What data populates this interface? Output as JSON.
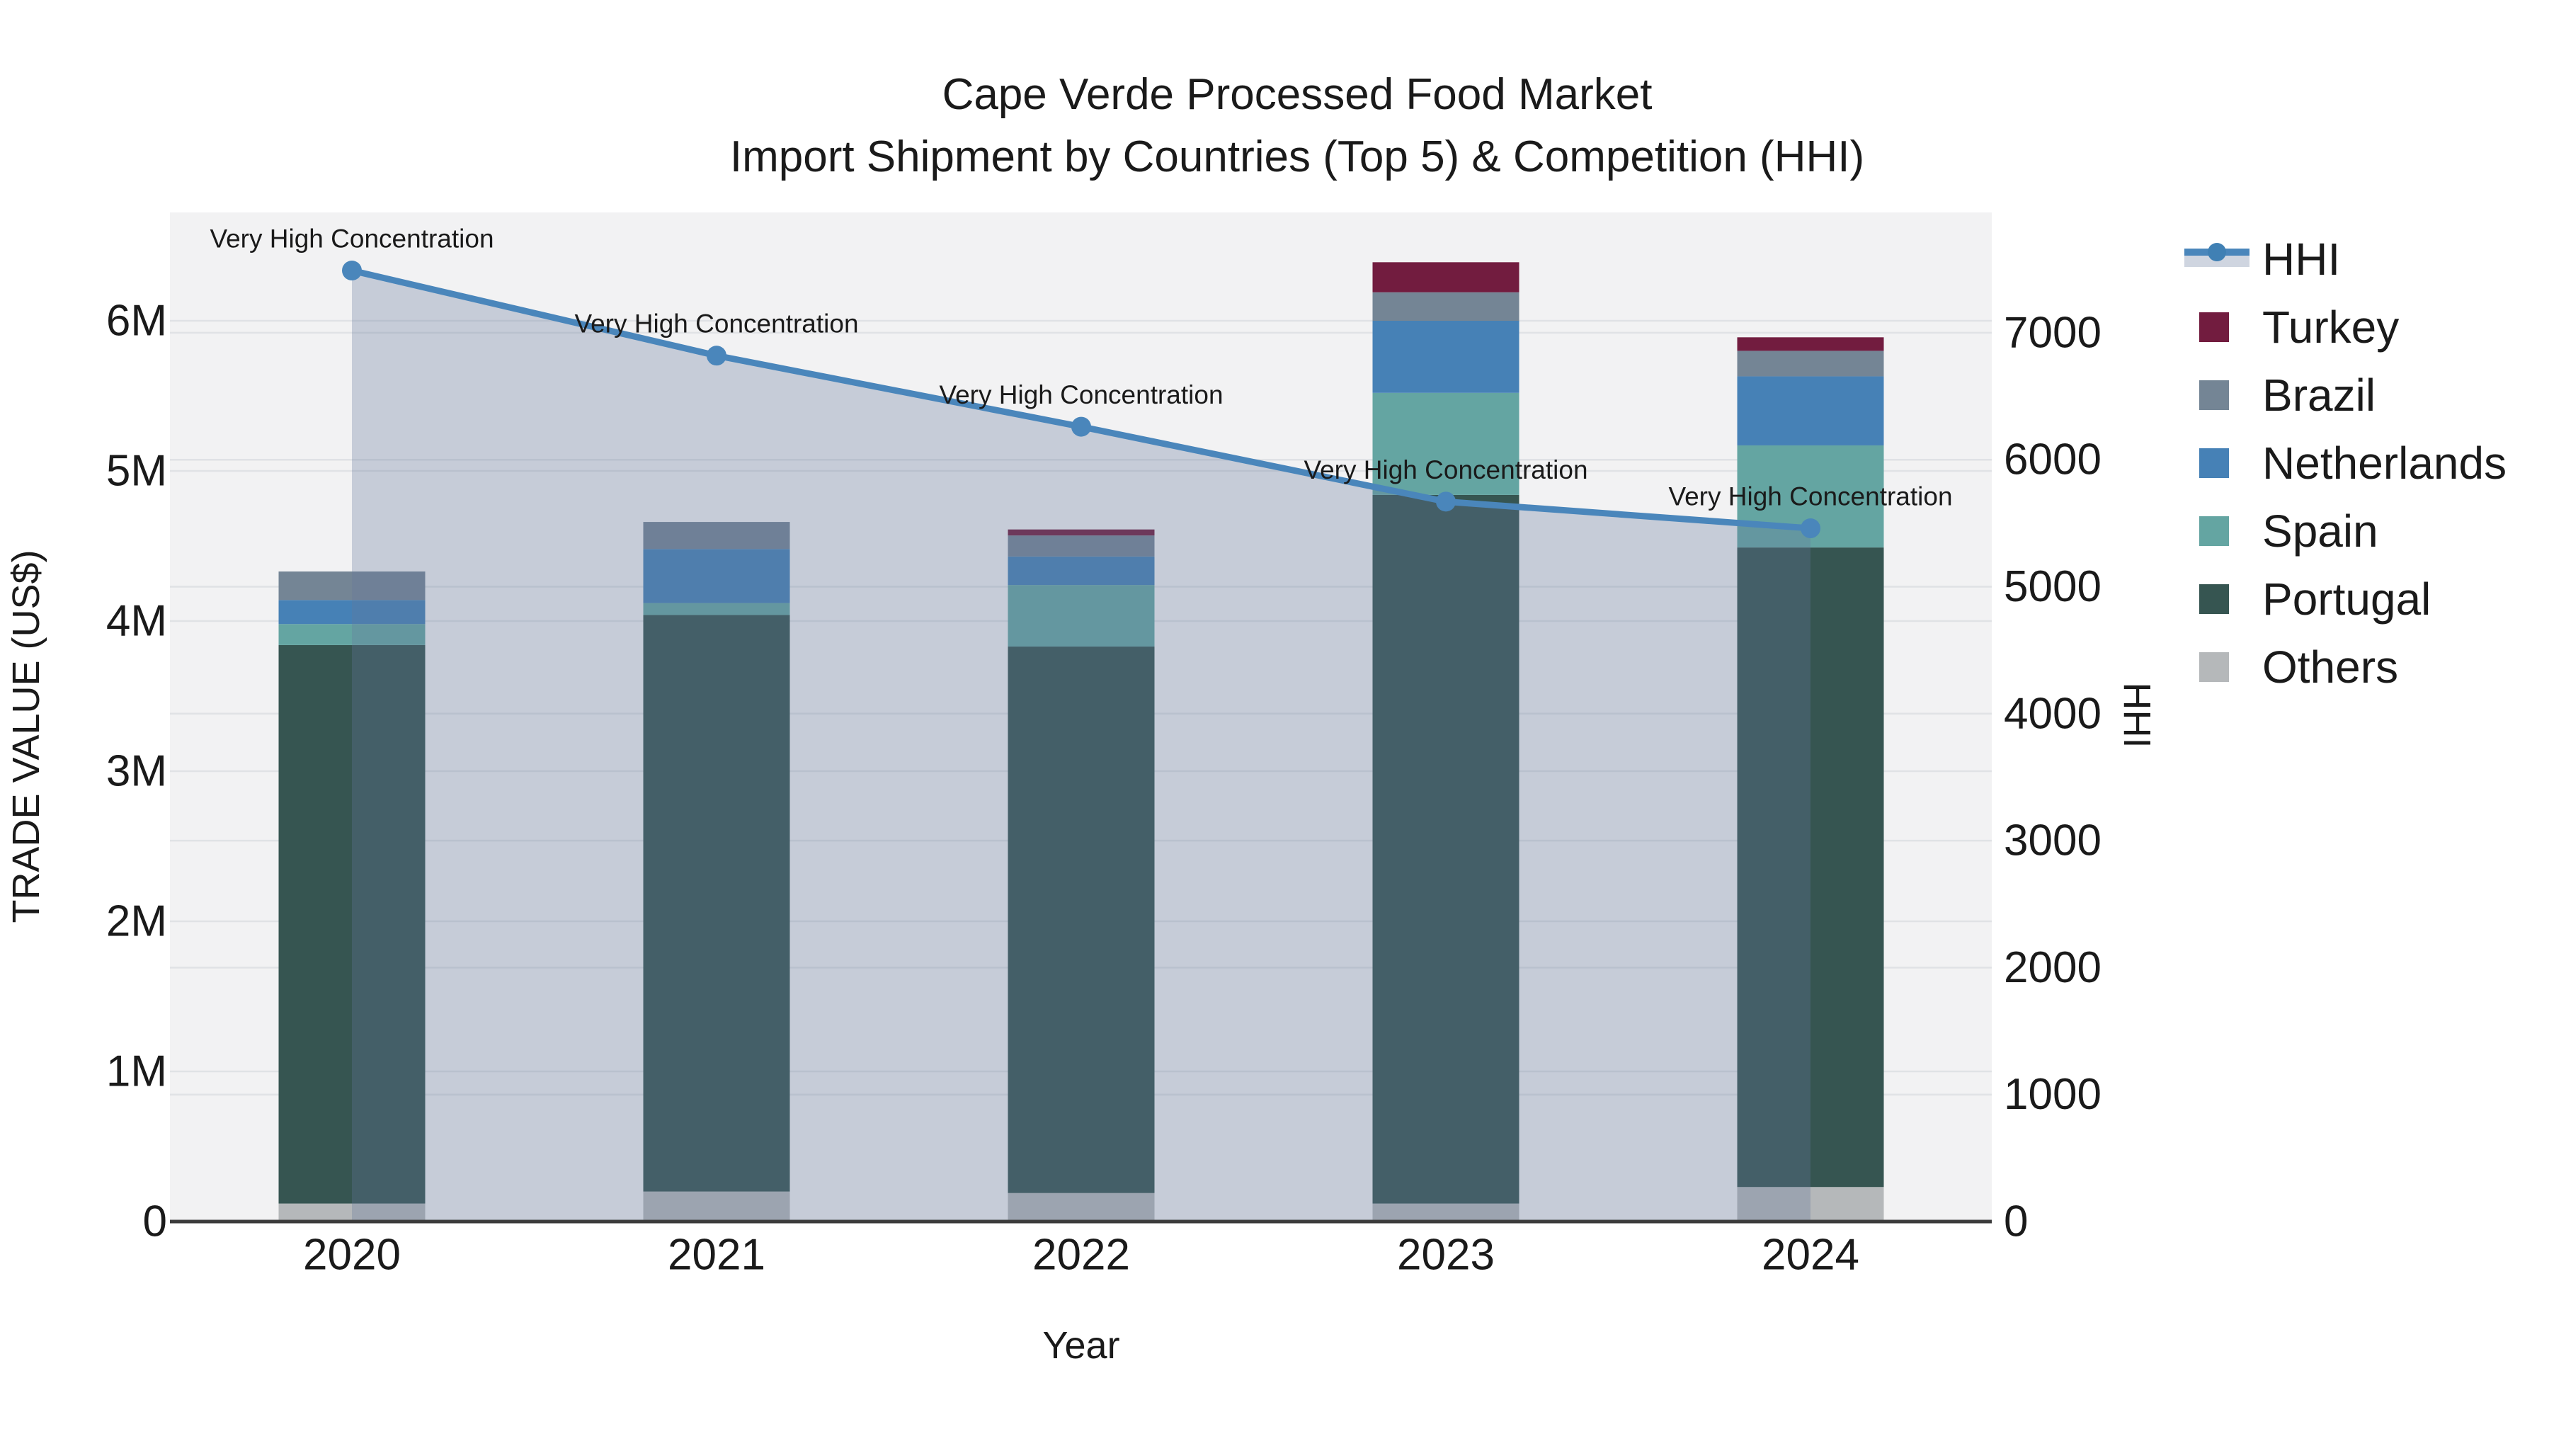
{
  "title": {
    "line1": "Cape Verde Processed Food Market",
    "line2": "Import Shipment by Countries (Top 5) & Competition (HHI)"
  },
  "axes": {
    "x_label": "Year",
    "y_left_label": "TRADE VALUE (US$)",
    "y_right_label": "HHI",
    "y_left_tick_labels": [
      "0",
      "1M",
      "2M",
      "3M",
      "4M",
      "5M",
      "6M"
    ],
    "y_right_tick_labels": [
      "0",
      "1000",
      "2000",
      "3000",
      "4000",
      "5000",
      "6000",
      "7000"
    ]
  },
  "legend": {
    "items": [
      {
        "label": "HHI",
        "type": "line",
        "color": "#4a86bb"
      },
      {
        "label": "Turkey",
        "type": "swatch",
        "color": "#721c3f"
      },
      {
        "label": "Brazil",
        "type": "swatch",
        "color": "#748595"
      },
      {
        "label": "Netherlands",
        "type": "swatch",
        "color": "#4681b6"
      },
      {
        "label": "Spain",
        "type": "swatch",
        "color": "#64a5a2"
      },
      {
        "label": "Portugal",
        "type": "swatch",
        "color": "#365551"
      },
      {
        "label": "Others",
        "type": "swatch",
        "color": "#b5b8ba"
      }
    ]
  },
  "chart_data": {
    "type": "bar",
    "subtype": "stacked-bars-with-line-area-overlay",
    "title": "Cape Verde Processed Food Market — Import Shipment by Countries (Top 5) & Competition (HHI)",
    "categories": [
      "2020",
      "2021",
      "2022",
      "2023",
      "2024"
    ],
    "stack_order_bottom_to_top": [
      "Others",
      "Portugal",
      "Spain",
      "Netherlands",
      "Brazil",
      "Turkey"
    ],
    "series": [
      {
        "name": "Others",
        "color": "#b5b8ba",
        "values_M": [
          0.12,
          0.2,
          0.19,
          0.12,
          0.23
        ]
      },
      {
        "name": "Portugal",
        "color": "#365551",
        "values_M": [
          3.72,
          3.84,
          3.64,
          4.72,
          4.26
        ]
      },
      {
        "name": "Spain",
        "color": "#64a5a2",
        "values_M": [
          0.14,
          0.08,
          0.41,
          0.68,
          0.68
        ]
      },
      {
        "name": "Netherlands",
        "color": "#4681b6",
        "values_M": [
          0.16,
          0.36,
          0.19,
          0.48,
          0.46
        ]
      },
      {
        "name": "Brazil",
        "color": "#748595",
        "values_M": [
          0.19,
          0.18,
          0.14,
          0.19,
          0.17
        ]
      },
      {
        "name": "Turkey",
        "color": "#721c3f",
        "values_M": [
          0.0,
          0.0,
          0.04,
          0.2,
          0.09
        ]
      }
    ],
    "bar_totals_M": [
      4.33,
      4.66,
      4.61,
      6.39,
      5.89
    ],
    "line_series": {
      "name": "HHI",
      "color": "#4a86bb",
      "area_fill": "rgba(100,120,155,0.31)",
      "values": [
        7490,
        6820,
        6260,
        5670,
        5460
      ]
    },
    "annotations": [
      {
        "text": "Very High Concentration",
        "category": "2020"
      },
      {
        "text": "Very High Concentration",
        "category": "2021"
      },
      {
        "text": "Very High Concentration",
        "category": "2022"
      },
      {
        "text": "Very High Concentration",
        "category": "2023"
      },
      {
        "text": "Very High Concentration",
        "category": "2024"
      }
    ],
    "xlabel": "Year",
    "ylabel_left": "TRADE VALUE (US$)",
    "ylabel_right": "HHI",
    "y_left_ticks_M": [
      0,
      1,
      2,
      3,
      4,
      5,
      6
    ],
    "y_right_ticks": [
      0,
      1000,
      2000,
      3000,
      4000,
      5000,
      6000,
      7000
    ],
    "ylim_left_M": [
      0,
      6.72
    ],
    "ylim_right": [
      0,
      7950
    ],
    "grid": true,
    "legend_position": "right",
    "colors": {
      "plot_background": "#f2f2f3",
      "figure_background": "#ffffff",
      "gridline": "#e0e2e5",
      "axis_line": "#3b3b3b",
      "text": "#1a1a1a"
    }
  }
}
